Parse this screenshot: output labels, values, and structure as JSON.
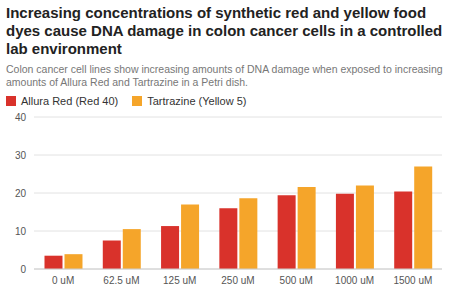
{
  "chart_data": {
    "type": "bar",
    "title": "Increasing concentrations of synthetic red and yellow food dyes cause DNA damage in colon cancer cells in a controlled lab environment",
    "subtitle": "Colon cancer cell lines show increasing amounts of DNA damage when exposed to increasing amounts of Allura Red and Tartrazine in a Petri dish.",
    "categories": [
      "0 uM",
      "62.5 uM",
      "125 uM",
      "250 uM",
      "500 uM",
      "1000 uM",
      "1500 uM"
    ],
    "series": [
      {
        "name": "Allura Red (Red 40)",
        "color": "#d9322b",
        "values": [
          3.5,
          7.5,
          11.3,
          16,
          19.4,
          19.8,
          20.4
        ]
      },
      {
        "name": "Tartrazine (Yellow 5)",
        "color": "#f5a52a",
        "values": [
          3.9,
          10.5,
          17,
          18.6,
          21.6,
          22,
          27
        ]
      }
    ],
    "ylim": [
      0,
      40
    ],
    "yticks": [
      0,
      10,
      20,
      30,
      40
    ],
    "grid": true,
    "legend": "top-left"
  }
}
